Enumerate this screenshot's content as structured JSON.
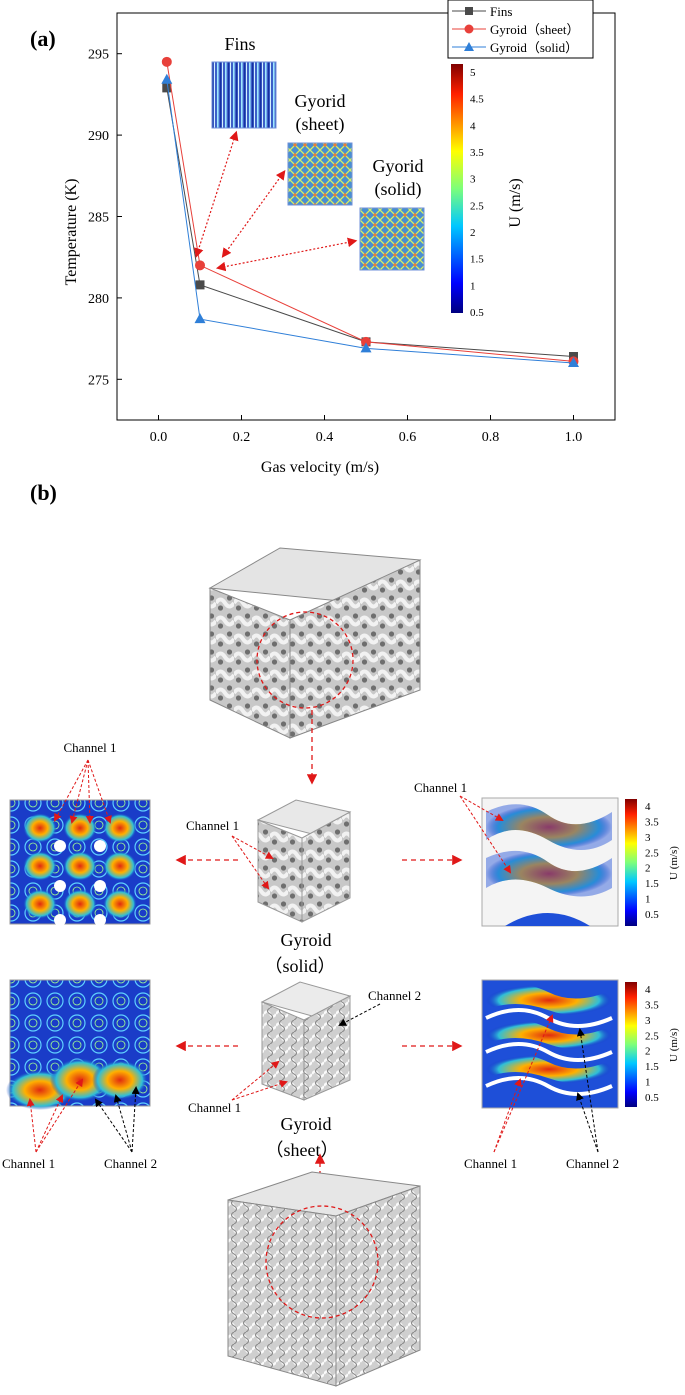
{
  "panel_a": {
    "label": "(a)",
    "insets": {
      "fins": "Fins",
      "sheet_line1": "Gyorid",
      "sheet_line2": "(sheet)",
      "solid_line1": "Gyorid",
      "solid_line2": "(solid)"
    },
    "colorbar": {
      "label": "U (m/s)",
      "ticks": [
        "5",
        "4.5",
        "4",
        "3.5",
        "3",
        "2.5",
        "2",
        "1.5",
        "1",
        "0.5"
      ]
    }
  },
  "chart_data": {
    "type": "line",
    "title": "",
    "xlabel": "Gas velocity (m/s)",
    "ylabel": "Temperature (K)",
    "xlim": [
      -0.1,
      1.1
    ],
    "ylim": [
      272.5,
      297.5
    ],
    "xticks": [
      "0.0",
      "0.2",
      "0.4",
      "0.6",
      "0.8",
      "1.0"
    ],
    "yticks": [
      "275",
      "280",
      "285",
      "290",
      "295"
    ],
    "legend_position": "top-right",
    "grid": false,
    "series": [
      {
        "name": "Fins",
        "marker": "square",
        "color": "#4a4a4a",
        "x": [
          0.02,
          0.1,
          0.5,
          1.0
        ],
        "y": [
          292.9,
          280.8,
          277.3,
          276.4
        ]
      },
      {
        "name": "Gyroid（sheet）",
        "marker": "circle",
        "color": "#e8403a",
        "x": [
          0.02,
          0.1,
          0.5,
          1.0
        ],
        "y": [
          294.5,
          282.0,
          277.3,
          276.1
        ]
      },
      {
        "name": "Gyroid（solid）",
        "marker": "triangle",
        "color": "#2f7fd8",
        "x": [
          0.02,
          0.1,
          0.5,
          1.0
        ],
        "y": [
          293.4,
          278.7,
          276.9,
          276.0
        ]
      }
    ]
  },
  "panel_b": {
    "label": "(b)",
    "solid_name": "Gyroid",
    "solid_type": "（solid）",
    "sheet_name": "Gyroid",
    "sheet_type": "（sheet）",
    "channel1": "Channel 1",
    "channel2": "Channel 2",
    "colorbar_label": "U (m/s)",
    "colorbar_ticks": [
      "4",
      "3.5",
      "3",
      "2.5",
      "2",
      "1.5",
      "1",
      "0.5"
    ]
  }
}
